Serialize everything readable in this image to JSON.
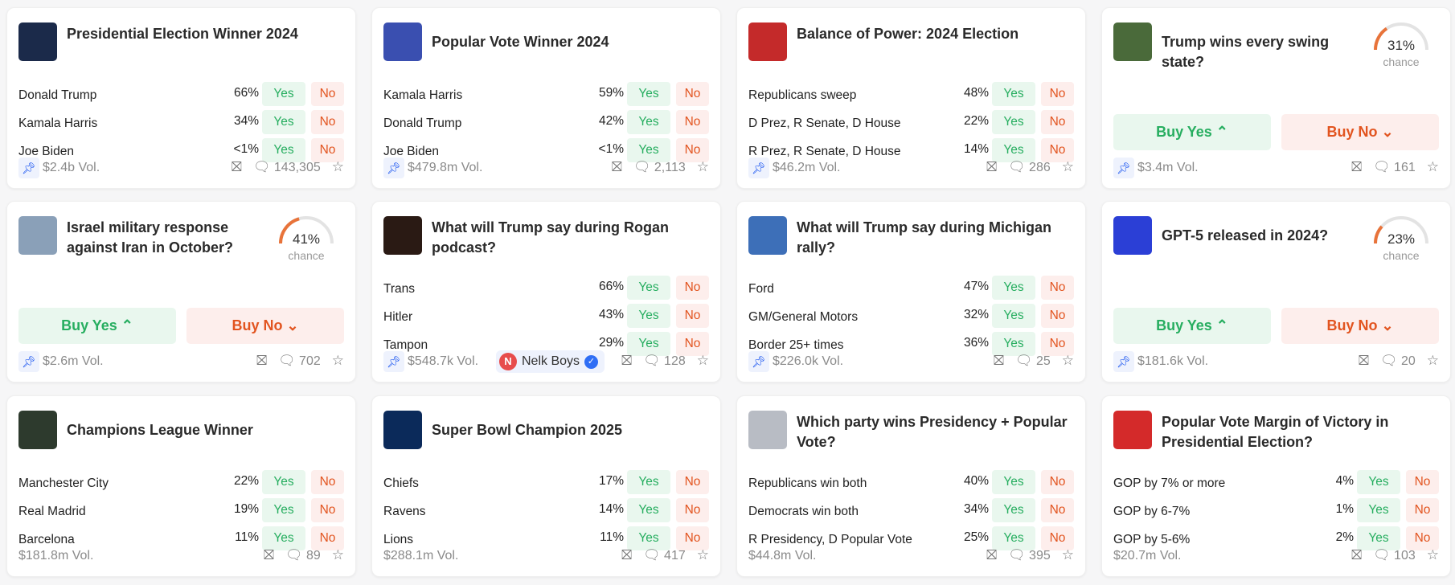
{
  "colors": {
    "yes": "#27ae60",
    "no": "#e2541f",
    "accent": "#1652f0",
    "gauge": "#e8733a"
  },
  "labels": {
    "yes": "Yes",
    "no": "No",
    "buy_yes": "Buy Yes ⌃",
    "buy_no": "Buy No ⌄",
    "chance": "chance"
  },
  "cards": [
    {
      "title": "Presidential Election Winner 2024",
      "thumb": "#1b2a4a",
      "pinned": true,
      "volume": "$2.4b Vol.",
      "comments": "143,305",
      "options": [
        {
          "name": "Donald Trump",
          "pct": "66%"
        },
        {
          "name": "Kamala Harris",
          "pct": "34%"
        },
        {
          "name": "Joe Biden",
          "pct": "<1%"
        }
      ]
    },
    {
      "title": "Popular Vote Winner 2024",
      "thumb": "#3a4fb0",
      "pinned": true,
      "volume": "$479.8m Vol.",
      "comments": "2,113",
      "options": [
        {
          "name": "Kamala Harris",
          "pct": "59%"
        },
        {
          "name": "Donald Trump",
          "pct": "42%"
        },
        {
          "name": "Joe Biden",
          "pct": "<1%"
        }
      ]
    },
    {
      "title": "Balance of Power: 2024 Election",
      "thumb": "#c42a2a",
      "pinned": true,
      "volume": "$46.2m Vol.",
      "comments": "286",
      "options": [
        {
          "name": "Republicans sweep",
          "pct": "48%"
        },
        {
          "name": "D Prez, R Senate, D House",
          "pct": "22%"
        },
        {
          "name": "R Prez, R Senate, D House",
          "pct": "14%"
        }
      ]
    },
    {
      "title": "Trump wins every swing state?",
      "thumb": "#4a6a3a",
      "pinned": true,
      "volume": "$3.4m Vol.",
      "comments": "161",
      "chance": 31
    },
    {
      "title": "Israel military response against Iran in October?",
      "thumb": "#8aa0b8",
      "pinned": true,
      "volume": "$2.6m Vol.",
      "comments": "702",
      "chance": 41
    },
    {
      "title": "What will Trump say during Rogan podcast?",
      "thumb": "#2a1a14",
      "pinned": true,
      "volume": "$548.7k Vol.",
      "comments": "128",
      "creator": {
        "initial": "N",
        "name": "Nelk Boys"
      },
      "options": [
        {
          "name": "Trans",
          "pct": "66%"
        },
        {
          "name": "Hitler",
          "pct": "43%"
        },
        {
          "name": "Tampon",
          "pct": "29%"
        }
      ]
    },
    {
      "title": "What will Trump say during Michigan rally?",
      "thumb": "#3d6fb8",
      "pinned": true,
      "volume": "$226.0k Vol.",
      "comments": "25",
      "options": [
        {
          "name": "Ford",
          "pct": "47%"
        },
        {
          "name": "GM/General Motors",
          "pct": "32%"
        },
        {
          "name": "Border 25+ times",
          "pct": "36%"
        }
      ]
    },
    {
      "title": "GPT-5 released in 2024?",
      "thumb": "#2b3fd6",
      "pinned": true,
      "volume": "$181.6k Vol.",
      "comments": "20",
      "chance": 23
    },
    {
      "title": "Champions League Winner",
      "thumb": "#2d3a2d",
      "pinned": false,
      "volume": "$181.8m Vol.",
      "comments": "89",
      "options": [
        {
          "name": "Manchester City",
          "pct": "22%"
        },
        {
          "name": "Real Madrid",
          "pct": "19%"
        },
        {
          "name": "Barcelona",
          "pct": "11%"
        }
      ]
    },
    {
      "title": "Super Bowl Champion 2025",
      "thumb": "#0b2a5a",
      "pinned": false,
      "volume": "$288.1m Vol.",
      "comments": "417",
      "options": [
        {
          "name": "Chiefs",
          "pct": "17%"
        },
        {
          "name": "Ravens",
          "pct": "14%"
        },
        {
          "name": "Lions",
          "pct": "11%"
        }
      ]
    },
    {
      "title": "Which party wins Presidency + Popular Vote?",
      "thumb": "#b8bcc4",
      "pinned": false,
      "volume": "$44.8m Vol.",
      "comments": "395",
      "options": [
        {
          "name": "Republicans win both",
          "pct": "40%"
        },
        {
          "name": "Democrats win both",
          "pct": "34%"
        },
        {
          "name": "R Presidency, D Popular Vote",
          "pct": "25%"
        }
      ]
    },
    {
      "title": "Popular Vote Margin of Victory in Presidential Election?",
      "thumb": "#d42a2a",
      "pinned": false,
      "volume": "$20.7m Vol.",
      "comments": "103",
      "options": [
        {
          "name": "GOP by 7% or more",
          "pct": "4%"
        },
        {
          "name": "GOP by 6-7%",
          "pct": "1%"
        },
        {
          "name": "GOP by 5-6%",
          "pct": "2%"
        }
      ]
    }
  ]
}
